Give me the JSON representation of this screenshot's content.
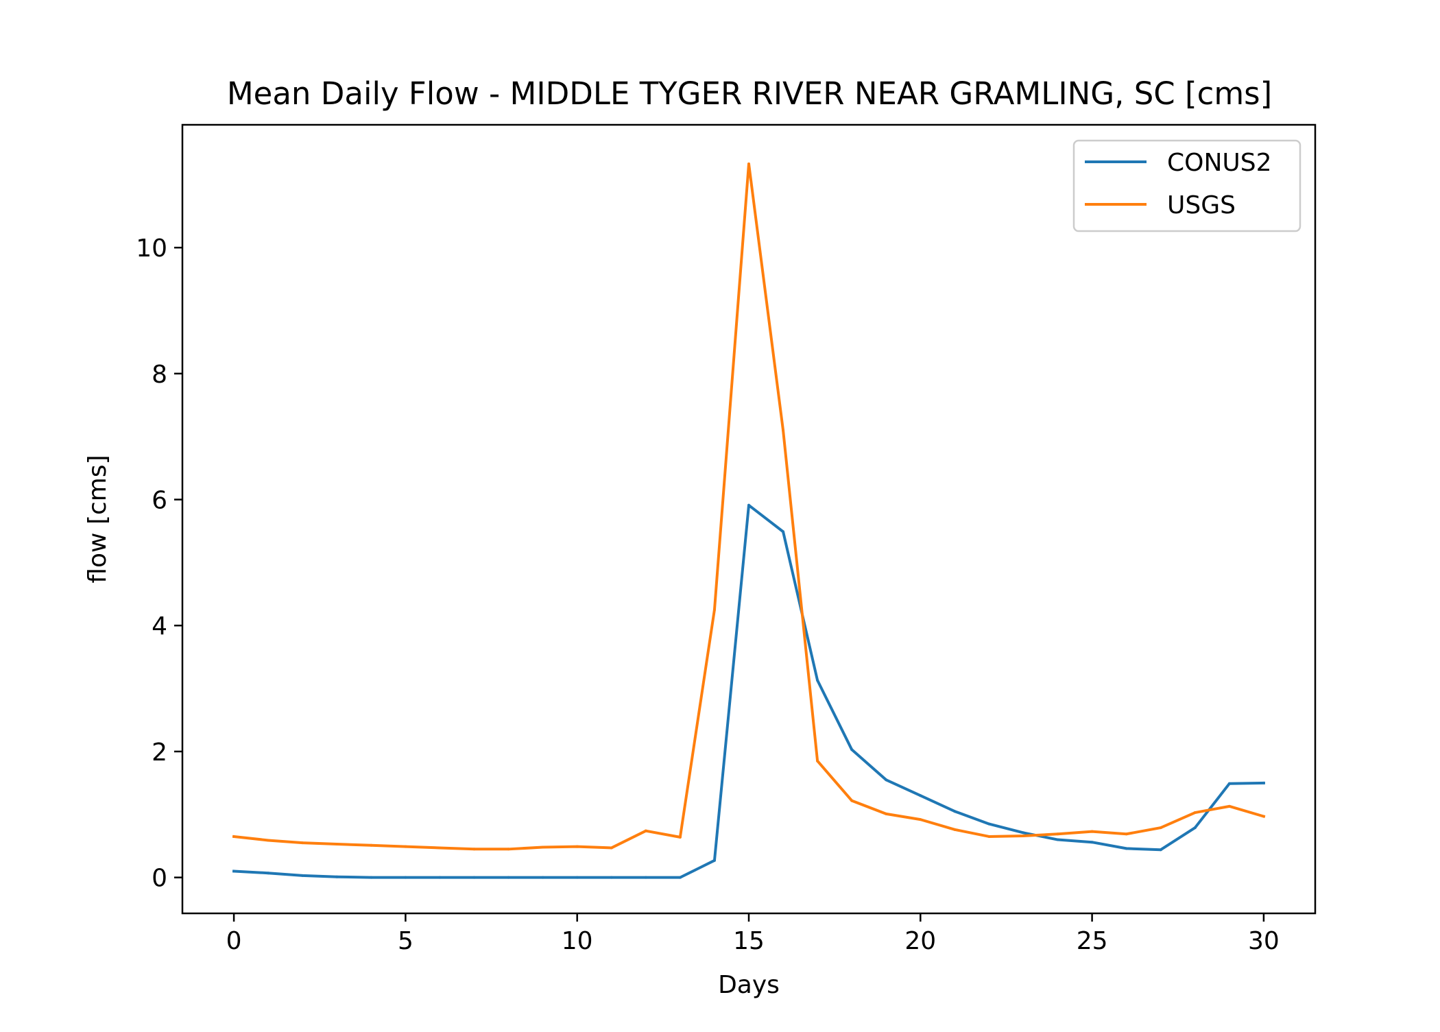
{
  "chart_data": {
    "type": "line",
    "title": "Mean Daily Flow - MIDDLE TYGER RIVER NEAR GRAMLING, SC [cms]",
    "xlabel": "Days",
    "ylabel": "flow [cms]",
    "xlim": [
      -1.5,
      31.5
    ],
    "ylim": [
      -0.57,
      11.95
    ],
    "xticks": [
      0,
      5,
      10,
      15,
      20,
      25,
      30
    ],
    "yticks": [
      0,
      2,
      4,
      6,
      8,
      10
    ],
    "grid": false,
    "legend_position": "top-right",
    "x": [
      0,
      1,
      2,
      3,
      4,
      5,
      6,
      7,
      8,
      9,
      10,
      11,
      12,
      13,
      14,
      15,
      16,
      17,
      18,
      19,
      20,
      21,
      22,
      23,
      24,
      25,
      26,
      27,
      28,
      29,
      30
    ],
    "series": [
      {
        "name": "CONUS2",
        "color": "#1f77b4",
        "values": [
          0.1,
          0.07,
          0.03,
          0.01,
          0.0,
          0.0,
          0.0,
          0.0,
          0.0,
          0.0,
          0.0,
          0.0,
          0.0,
          0.0,
          0.27,
          5.91,
          5.49,
          3.13,
          2.03,
          1.55,
          1.3,
          1.05,
          0.85,
          0.71,
          0.6,
          0.56,
          0.46,
          0.44,
          0.79,
          1.49,
          1.5
        ]
      },
      {
        "name": "USGS",
        "color": "#ff7f0e",
        "values": [
          0.65,
          0.59,
          0.55,
          0.53,
          0.51,
          0.49,
          0.47,
          0.45,
          0.45,
          0.48,
          0.49,
          0.47,
          0.74,
          0.64,
          4.25,
          11.33,
          7.1,
          1.85,
          1.22,
          1.01,
          0.92,
          0.76,
          0.65,
          0.66,
          0.69,
          0.73,
          0.69,
          0.79,
          1.03,
          1.13,
          0.97
        ]
      }
    ]
  }
}
